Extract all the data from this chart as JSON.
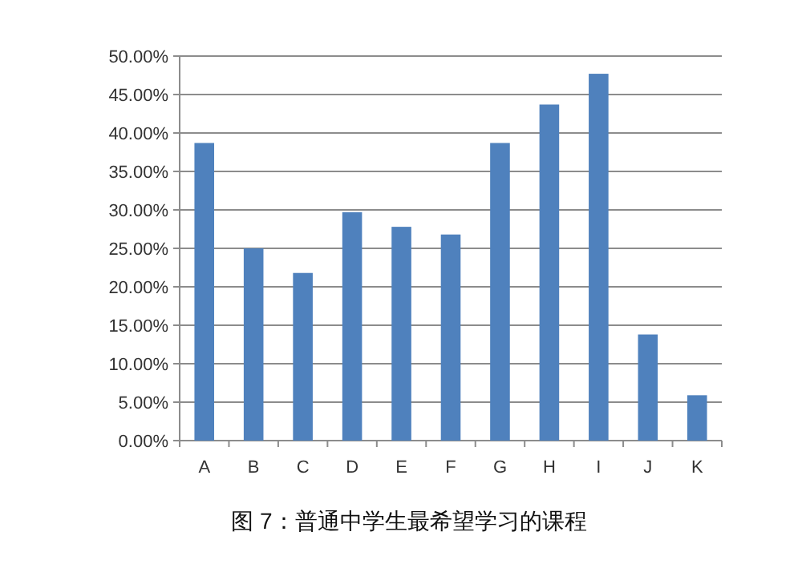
{
  "chart_data": {
    "type": "bar",
    "categories": [
      "A",
      "B",
      "C",
      "D",
      "E",
      "F",
      "G",
      "H",
      "I",
      "J",
      "K"
    ],
    "values": [
      38.7,
      25.0,
      21.8,
      29.7,
      27.8,
      26.8,
      38.7,
      43.7,
      47.7,
      13.8,
      5.9
    ],
    "color": "#4f81bd",
    "ylim": [
      0,
      50
    ],
    "yticks": [
      {
        "value": 0,
        "label": "0.00%"
      },
      {
        "value": 5,
        "label": "5.00%"
      },
      {
        "value": 10,
        "label": "10.00%"
      },
      {
        "value": 15,
        "label": "15.00%"
      },
      {
        "value": 20,
        "label": "20.00%"
      },
      {
        "value": 25,
        "label": "25.00%"
      },
      {
        "value": 30,
        "label": "30.00%"
      },
      {
        "value": 35,
        "label": "35.00%"
      },
      {
        "value": 40,
        "label": "40.00%"
      },
      {
        "value": 45,
        "label": "45.00%"
      },
      {
        "value": 50,
        "label": "50.00%"
      }
    ],
    "grid": "y",
    "annotations": [
      "图 7：普通中学生最希望学习的课程"
    ]
  }
}
